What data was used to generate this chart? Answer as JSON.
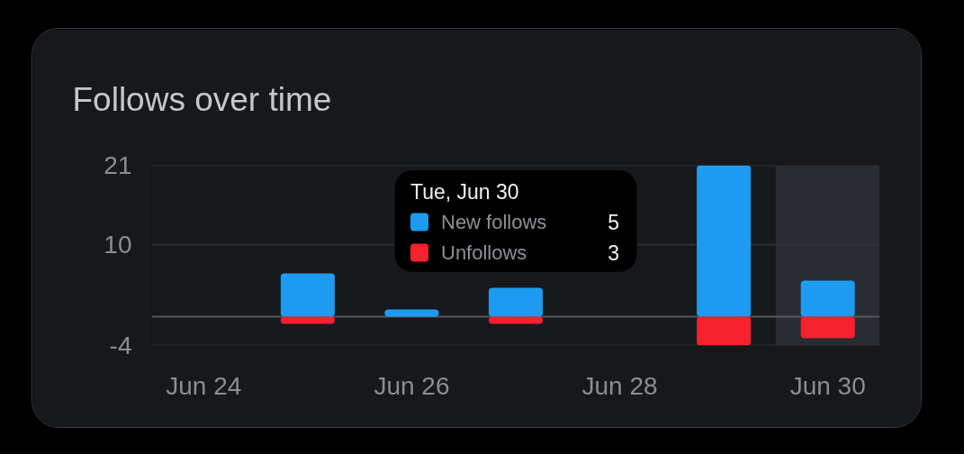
{
  "chart_data": {
    "type": "bar",
    "title": "Follows over time",
    "legend_title": "Tue, Jun 30",
    "categories": [
      "Jun 24",
      null,
      "Jun 26",
      null,
      "Jun 28",
      null,
      "Jun 30"
    ],
    "series": [
      {
        "name": "New follows",
        "color": "#1d9bf0",
        "values": [
          0,
          6,
          1,
          4,
          null,
          21,
          5
        ]
      },
      {
        "name": "Unfollows",
        "color": "#f4212e",
        "values": [
          0,
          -1,
          0,
          -1,
          null,
          -4,
          -3
        ]
      }
    ],
    "stacked": true,
    "ylim": [
      -4,
      21
    ],
    "yticks": [
      -4,
      10,
      21
    ],
    "grid": "y",
    "legend": "top",
    "ref_lines": [
      {
        "axis": "y",
        "value": 0,
        "color": "#55565b"
      }
    ],
    "bands": [
      {
        "axis": "x",
        "from": "Jun 30",
        "to": "Jun 30",
        "color": "#2a2b30"
      }
    ],
    "annotations": [
      "5",
      "3"
    ]
  }
}
